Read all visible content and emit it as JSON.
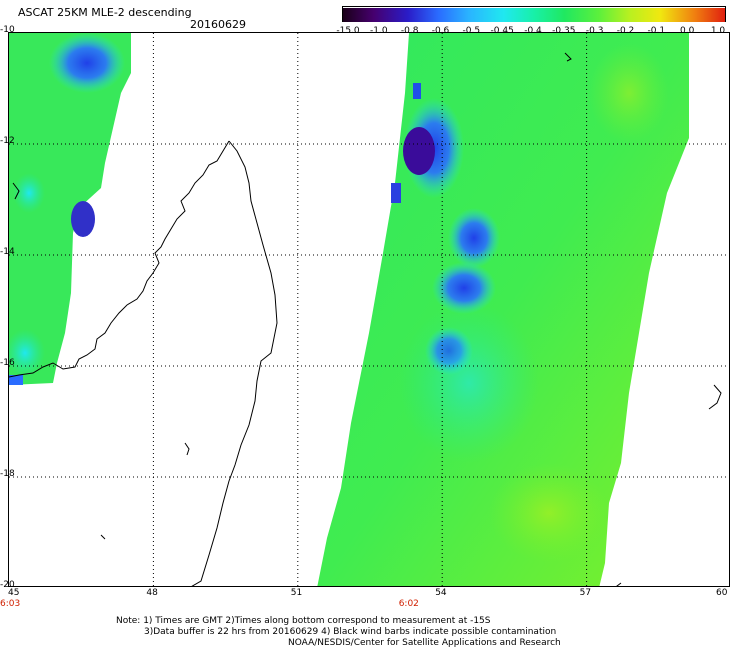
{
  "header": {
    "title": "ASCAT 25KM MLE-2 descending",
    "date": "20160629"
  },
  "colorbar": {
    "labels": [
      "-15.0",
      "-1.0",
      "-0.8",
      "-0.6",
      "-0.5",
      "-0.45",
      "-0.4",
      "-0.35",
      "-0.3",
      "-0.2",
      "-0.1",
      "0.0",
      "1.0"
    ],
    "colors": [
      "#1a0018",
      "#46006e",
      "#2a1cc8",
      "#2a6cff",
      "#2ab4ff",
      "#20e8f0",
      "#18f0a8",
      "#20e860",
      "#5cf03c",
      "#b8f020",
      "#f0e810",
      "#f08010",
      "#e02010"
    ]
  },
  "map": {
    "lon_labels": [
      "45",
      "48",
      "51",
      "54",
      "57",
      "60"
    ],
    "lat_labels": [
      "-10",
      "-12",
      "-14",
      "-16",
      "-18",
      "-20"
    ],
    "time_labels": [
      {
        "text": "6:03",
        "lon": 45
      },
      {
        "text": "6:02",
        "lon": 53.2
      }
    ],
    "lon_range": [
      45,
      60
    ],
    "lat_range": [
      -10,
      -20
    ]
  },
  "notes": {
    "line1": "Note: 1) Times are GMT 2)Times along bottom correspond to measurement at -15S",
    "line2": "3)Data buffer is 22 hrs from 20160629 4) Black wind barbs indicate possible contamination",
    "line3": "NOAA/NESDIS/Center for Satellite Applications and Research"
  }
}
